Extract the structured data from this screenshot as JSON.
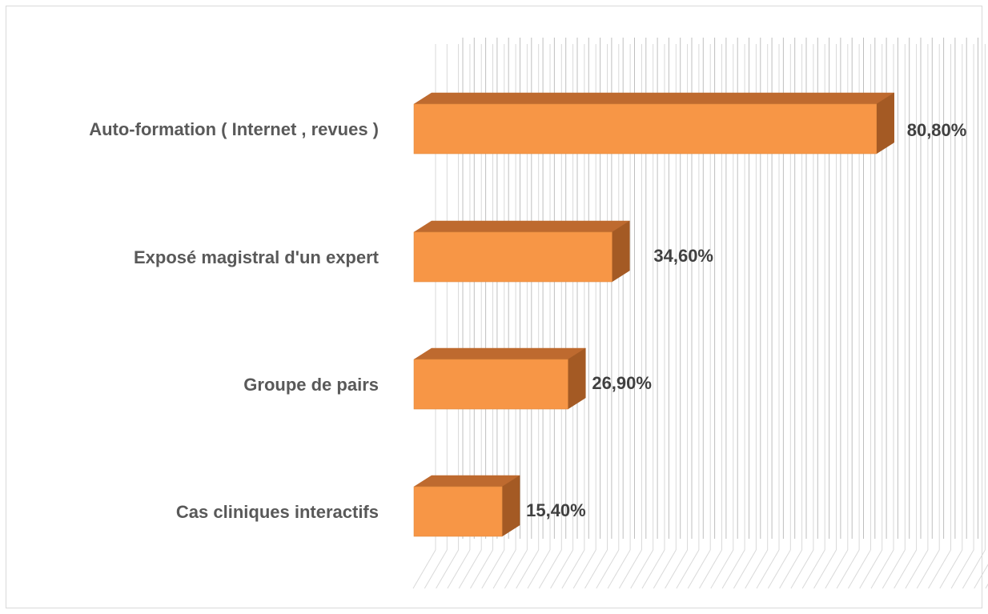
{
  "chart_data": {
    "type": "bar",
    "orientation": "horizontal",
    "three_d": true,
    "categories": [
      "Auto-formation ( Internet , revues )",
      "Exposé magistral d'un expert",
      "Groupe de pairs ",
      "Cas cliniques interactifs"
    ],
    "values": [
      80.8,
      34.6,
      26.9,
      15.4
    ],
    "value_labels": [
      "80,80%",
      "34,60%",
      "26,90%",
      "15,40%"
    ],
    "xlim": [
      0,
      100
    ],
    "grid": true,
    "legend": "none",
    "colors": {
      "bar_front": "#F79646",
      "bar_top": "#BE6A2F",
      "bar_side": "#A45A24",
      "grid": "#BFBFBF"
    }
  }
}
